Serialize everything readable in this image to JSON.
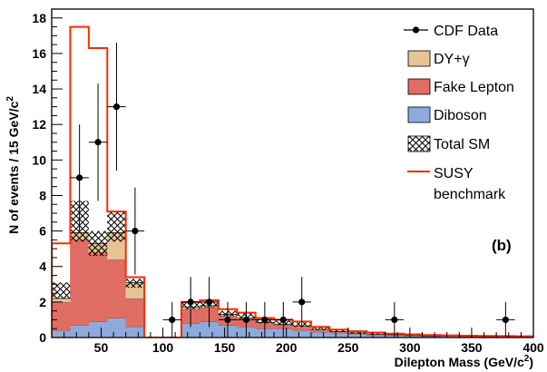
{
  "chart_data": {
    "type": "histogram",
    "xlabel": "Dilepton Mass (GeV/c",
    "xlabel_sup": "2",
    "xlabel_end": ")",
    "ylabel": "N of events / 15 GeV/c",
    "ylabel_sup": "2",
    "xlim": [
      10,
      400
    ],
    "ylim": [
      0,
      18.5
    ],
    "x_ticks": [
      50,
      100,
      150,
      200,
      250,
      300,
      350,
      400
    ],
    "y_ticks": [
      0,
      2,
      4,
      6,
      8,
      10,
      12,
      14,
      16,
      18
    ],
    "panel_label": "(b)",
    "bin_edges": [
      10,
      25,
      40,
      55,
      70,
      85,
      100,
      115,
      130,
      145,
      160,
      175,
      190,
      205,
      220,
      235,
      250,
      265,
      280,
      295,
      310,
      325,
      340,
      355,
      370,
      385,
      400
    ],
    "stack": [
      {
        "name": "Diboson",
        "color": "#8eaadb",
        "values": [
          0.4,
          0.7,
          0.9,
          1.1,
          0.6,
          0,
          0,
          0.8,
          0.9,
          0.7,
          0.6,
          0.5,
          0.5,
          0.4,
          0.3,
          0.25,
          0.2,
          0.15,
          0.12,
          0.1,
          0.08,
          0.07,
          0.06,
          0.05,
          0.04,
          0.03
        ]
      },
      {
        "name": "Fake Lepton",
        "color": "#e06d63",
        "values": [
          1.6,
          4.8,
          3.9,
          3.3,
          1.6,
          0,
          0,
          0.8,
          0.8,
          0.5,
          0.4,
          0.3,
          0.2,
          0.2,
          0.1,
          0.05,
          0.03,
          0.02,
          0.02,
          0.01,
          0.01,
          0.01,
          0.01,
          0,
          0,
          0
        ]
      },
      {
        "name": "DY+γ",
        "color": "#e6c496",
        "values": [
          0.2,
          0.4,
          0.5,
          1.5,
          0.9,
          0,
          0,
          0.1,
          0.1,
          0.1,
          0.1,
          0.05,
          0.05,
          0.05,
          0.05,
          0.03,
          0.02,
          0.02,
          0.02,
          0.02,
          0.01,
          0.01,
          0.01,
          0.01,
          0.01,
          0.01
        ]
      }
    ],
    "total_sm_band": {
      "name": "Total SM",
      "low": [
        2.2,
        5.4,
        4.6,
        5.4,
        2.8,
        0,
        0,
        1.6,
        1.7,
        1.2,
        1.05,
        0.8,
        0.7,
        0.6,
        0.42,
        0.3,
        0.22,
        0.17,
        0.14,
        0.11,
        0.09,
        0.08,
        0.07,
        0.06,
        0.05,
        0.04
      ],
      "high": [
        3.1,
        7.7,
        6.0,
        7.1,
        3.3,
        0,
        0,
        2.0,
        2.1,
        1.5,
        1.35,
        1.05,
        0.95,
        0.85,
        0.6,
        0.45,
        0.34,
        0.26,
        0.21,
        0.17,
        0.14,
        0.12,
        0.1,
        0.09,
        0.07,
        0.06
      ]
    },
    "susy": {
      "name": "SUSY",
      "name_line2": "benchmark",
      "color": "#ff2a00",
      "values": [
        5.3,
        17.5,
        16.3,
        7.1,
        3.4,
        0,
        0,
        2.0,
        2.1,
        1.6,
        1.4,
        1.1,
        1.0,
        0.9,
        0.6,
        0.45,
        0.35,
        0.28,
        0.22,
        0.18,
        0.14,
        0.12,
        0.1,
        0.09,
        0.08,
        0.07
      ]
    },
    "data": {
      "name": "CDF Data",
      "points": [
        {
          "x": 32.5,
          "y": 9,
          "err": 3.0
        },
        {
          "x": 47.5,
          "y": 11,
          "err": 3.3
        },
        {
          "x": 62.5,
          "y": 13,
          "err": 3.6
        },
        {
          "x": 77.5,
          "y": 6,
          "err": 2.45
        },
        {
          "x": 107.5,
          "y": 1,
          "err": 1.0
        },
        {
          "x": 122.5,
          "y": 2,
          "err": 1.41
        },
        {
          "x": 137.5,
          "y": 2,
          "err": 1.41
        },
        {
          "x": 152.5,
          "y": 1,
          "err": 1.0
        },
        {
          "x": 167.5,
          "y": 1,
          "err": 1.0
        },
        {
          "x": 182.5,
          "y": 1,
          "err": 1.0
        },
        {
          "x": 197.5,
          "y": 1,
          "err": 1.0
        },
        {
          "x": 212.5,
          "y": 2,
          "err": 1.41
        },
        {
          "x": 287.5,
          "y": 1,
          "err": 1.0
        },
        {
          "x": 377.5,
          "y": 1,
          "err": 1.0
        }
      ]
    },
    "legend": {
      "placement": "top-right",
      "entries": [
        "CDF Data",
        "DY+γ",
        "Fake Lepton",
        "Diboson",
        "Total SM",
        "SUSY benchmark"
      ]
    }
  }
}
